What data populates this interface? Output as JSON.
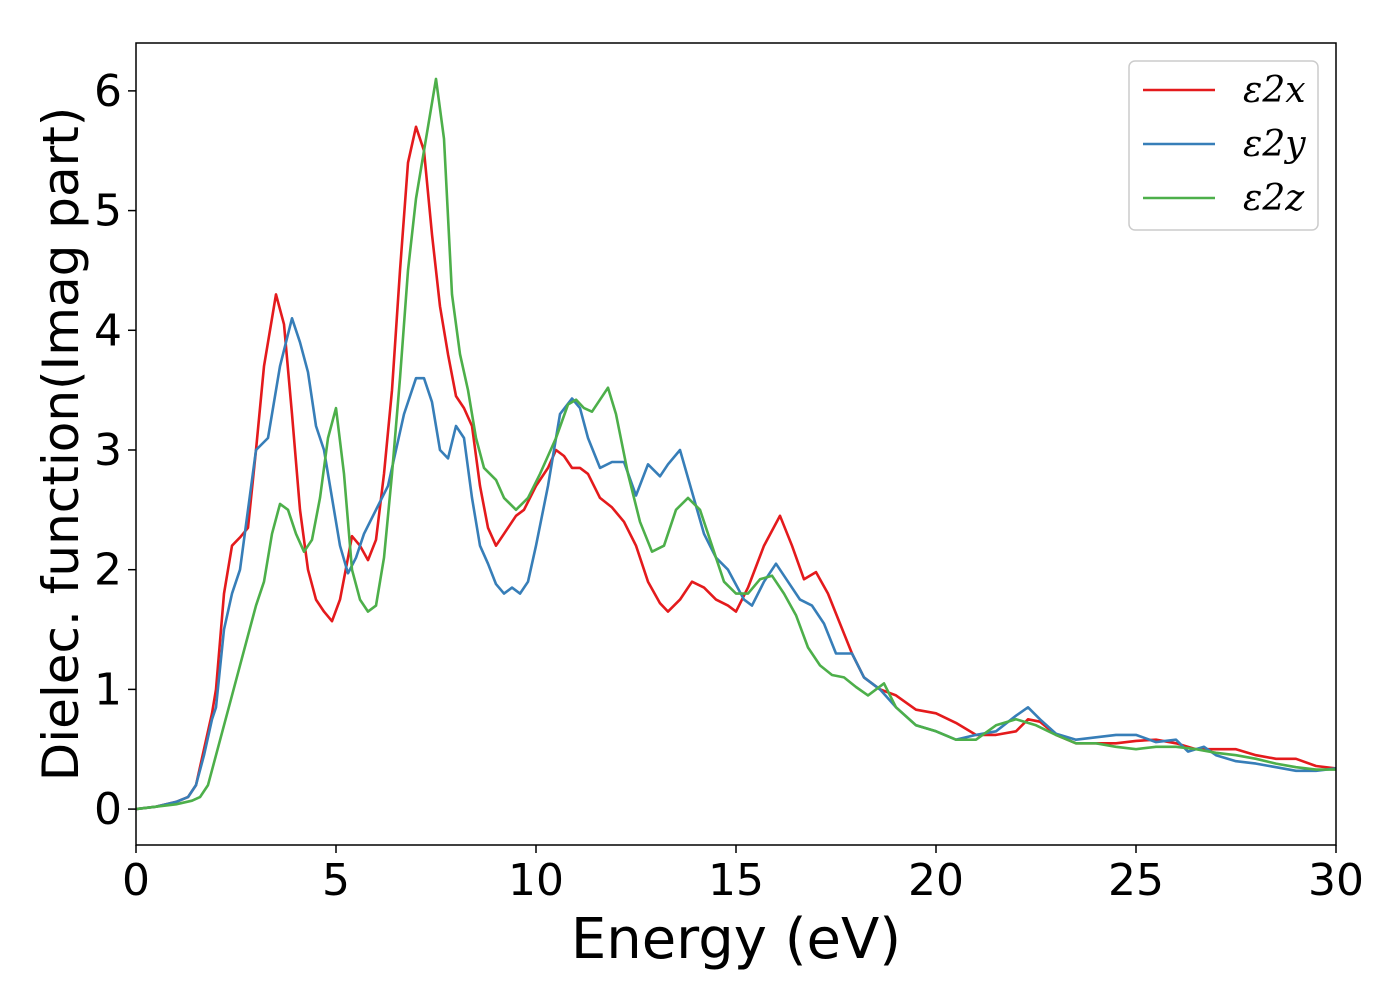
{
  "chart_data": {
    "type": "line",
    "xlabel": "Energy (eV)",
    "ylabel": "Dielec. function(Imag part)",
    "xlim": [
      0,
      30
    ],
    "ylim": [
      -0.3,
      6.4
    ],
    "xticks": [
      0,
      5,
      10,
      15,
      20,
      25,
      30
    ],
    "xtick_labels": [
      "0",
      "5",
      "10",
      "15",
      "20",
      "25",
      "30"
    ],
    "yticks": [
      0,
      1,
      2,
      3,
      4,
      5,
      6
    ],
    "ytick_labels": [
      "0",
      "1",
      "2",
      "3",
      "4",
      "5",
      "6"
    ],
    "grid": false,
    "legend_position": "top-right",
    "series": [
      {
        "name": "ε2x",
        "color": "#e41a1c",
        "points": [
          [
            0,
            0
          ],
          [
            0.5,
            0.02
          ],
          [
            1,
            0.06
          ],
          [
            1.3,
            0.1
          ],
          [
            1.5,
            0.2
          ],
          [
            1.7,
            0.5
          ],
          [
            1.9,
            0.8
          ],
          [
            2.0,
            1.0
          ],
          [
            2.2,
            1.8
          ],
          [
            2.4,
            2.2
          ],
          [
            2.6,
            2.27
          ],
          [
            2.8,
            2.35
          ],
          [
            3.0,
            3.0
          ],
          [
            3.2,
            3.7
          ],
          [
            3.5,
            4.3
          ],
          [
            3.7,
            4.05
          ],
          [
            3.9,
            3.3
          ],
          [
            4.1,
            2.5
          ],
          [
            4.3,
            2.0
          ],
          [
            4.5,
            1.75
          ],
          [
            4.7,
            1.65
          ],
          [
            4.9,
            1.57
          ],
          [
            5.1,
            1.75
          ],
          [
            5.3,
            2.1
          ],
          [
            5.4,
            2.28
          ],
          [
            5.6,
            2.2
          ],
          [
            5.8,
            2.08
          ],
          [
            6.0,
            2.25
          ],
          [
            6.2,
            2.8
          ],
          [
            6.4,
            3.5
          ],
          [
            6.6,
            4.5
          ],
          [
            6.8,
            5.4
          ],
          [
            7.0,
            5.7
          ],
          [
            7.2,
            5.5
          ],
          [
            7.4,
            4.8
          ],
          [
            7.6,
            4.2
          ],
          [
            7.8,
            3.8
          ],
          [
            8.0,
            3.45
          ],
          [
            8.2,
            3.35
          ],
          [
            8.4,
            3.2
          ],
          [
            8.6,
            2.7
          ],
          [
            8.8,
            2.35
          ],
          [
            9.0,
            2.2
          ],
          [
            9.2,
            2.3
          ],
          [
            9.5,
            2.45
          ],
          [
            9.7,
            2.5
          ],
          [
            10.0,
            2.7
          ],
          [
            10.3,
            2.85
          ],
          [
            10.5,
            3.0
          ],
          [
            10.7,
            2.95
          ],
          [
            10.9,
            2.85
          ],
          [
            11.1,
            2.85
          ],
          [
            11.3,
            2.8
          ],
          [
            11.6,
            2.6
          ],
          [
            11.9,
            2.52
          ],
          [
            12.2,
            2.4
          ],
          [
            12.5,
            2.2
          ],
          [
            12.8,
            1.9
          ],
          [
            13.1,
            1.72
          ],
          [
            13.3,
            1.65
          ],
          [
            13.6,
            1.75
          ],
          [
            13.9,
            1.9
          ],
          [
            14.2,
            1.85
          ],
          [
            14.5,
            1.75
          ],
          [
            14.8,
            1.7
          ],
          [
            15.0,
            1.65
          ],
          [
            15.3,
            1.85
          ],
          [
            15.7,
            2.2
          ],
          [
            16.1,
            2.45
          ],
          [
            16.4,
            2.2
          ],
          [
            16.7,
            1.92
          ],
          [
            17.0,
            1.98
          ],
          [
            17.3,
            1.8
          ],
          [
            17.6,
            1.55
          ],
          [
            17.9,
            1.3
          ],
          [
            18.2,
            1.1
          ],
          [
            18.6,
            1.0
          ],
          [
            19.0,
            0.95
          ],
          [
            19.5,
            0.83
          ],
          [
            20.0,
            0.8
          ],
          [
            20.5,
            0.72
          ],
          [
            21.0,
            0.62
          ],
          [
            21.5,
            0.62
          ],
          [
            22.0,
            0.65
          ],
          [
            22.3,
            0.75
          ],
          [
            22.6,
            0.73
          ],
          [
            23.0,
            0.62
          ],
          [
            23.5,
            0.55
          ],
          [
            24.0,
            0.55
          ],
          [
            24.5,
            0.55
          ],
          [
            25.0,
            0.57
          ],
          [
            25.5,
            0.58
          ],
          [
            26.0,
            0.55
          ],
          [
            26.5,
            0.5
          ],
          [
            27.0,
            0.5
          ],
          [
            27.5,
            0.5
          ],
          [
            28.0,
            0.45
          ],
          [
            28.5,
            0.42
          ],
          [
            29.0,
            0.42
          ],
          [
            29.5,
            0.36
          ],
          [
            30.0,
            0.34
          ]
        ]
      },
      {
        "name": "ε2y",
        "color": "#377eb8",
        "points": [
          [
            0,
            0
          ],
          [
            0.5,
            0.02
          ],
          [
            1,
            0.06
          ],
          [
            1.3,
            0.1
          ],
          [
            1.5,
            0.2
          ],
          [
            1.7,
            0.45
          ],
          [
            1.9,
            0.75
          ],
          [
            2.0,
            0.85
          ],
          [
            2.2,
            1.5
          ],
          [
            2.4,
            1.8
          ],
          [
            2.6,
            2.0
          ],
          [
            2.8,
            2.5
          ],
          [
            3.0,
            3.0
          ],
          [
            3.3,
            3.1
          ],
          [
            3.6,
            3.7
          ],
          [
            3.9,
            4.1
          ],
          [
            4.1,
            3.9
          ],
          [
            4.3,
            3.65
          ],
          [
            4.5,
            3.2
          ],
          [
            4.7,
            3.0
          ],
          [
            4.9,
            2.6
          ],
          [
            5.1,
            2.2
          ],
          [
            5.3,
            1.97
          ],
          [
            5.5,
            2.1
          ],
          [
            5.7,
            2.3
          ],
          [
            6.0,
            2.5
          ],
          [
            6.3,
            2.7
          ],
          [
            6.5,
            3.0
          ],
          [
            6.7,
            3.3
          ],
          [
            7.0,
            3.6
          ],
          [
            7.2,
            3.6
          ],
          [
            7.4,
            3.4
          ],
          [
            7.6,
            3.0
          ],
          [
            7.8,
            2.93
          ],
          [
            8.0,
            3.2
          ],
          [
            8.2,
            3.1
          ],
          [
            8.4,
            2.6
          ],
          [
            8.6,
            2.2
          ],
          [
            8.8,
            2.05
          ],
          [
            9.0,
            1.88
          ],
          [
            9.2,
            1.8
          ],
          [
            9.4,
            1.85
          ],
          [
            9.6,
            1.8
          ],
          [
            9.8,
            1.9
          ],
          [
            10.0,
            2.2
          ],
          [
            10.3,
            2.7
          ],
          [
            10.6,
            3.3
          ],
          [
            10.9,
            3.43
          ],
          [
            11.1,
            3.35
          ],
          [
            11.3,
            3.1
          ],
          [
            11.6,
            2.85
          ],
          [
            11.9,
            2.9
          ],
          [
            12.2,
            2.9
          ],
          [
            12.5,
            2.62
          ],
          [
            12.8,
            2.88
          ],
          [
            13.1,
            2.78
          ],
          [
            13.3,
            2.88
          ],
          [
            13.6,
            3.0
          ],
          [
            13.9,
            2.65
          ],
          [
            14.2,
            2.3
          ],
          [
            14.5,
            2.1
          ],
          [
            14.8,
            2.0
          ],
          [
            15.2,
            1.75
          ],
          [
            15.4,
            1.7
          ],
          [
            15.7,
            1.9
          ],
          [
            16.0,
            2.05
          ],
          [
            16.3,
            1.9
          ],
          [
            16.6,
            1.75
          ],
          [
            16.9,
            1.7
          ],
          [
            17.2,
            1.55
          ],
          [
            17.5,
            1.3
          ],
          [
            17.9,
            1.3
          ],
          [
            18.2,
            1.1
          ],
          [
            18.6,
            1.0
          ],
          [
            19.0,
            0.85
          ],
          [
            19.5,
            0.7
          ],
          [
            20.0,
            0.65
          ],
          [
            20.5,
            0.58
          ],
          [
            21.0,
            0.62
          ],
          [
            21.5,
            0.65
          ],
          [
            22.0,
            0.78
          ],
          [
            22.3,
            0.85
          ],
          [
            22.6,
            0.75
          ],
          [
            23.0,
            0.63
          ],
          [
            23.5,
            0.58
          ],
          [
            24.0,
            0.6
          ],
          [
            24.5,
            0.62
          ],
          [
            25.0,
            0.62
          ],
          [
            25.5,
            0.56
          ],
          [
            26.0,
            0.58
          ],
          [
            26.3,
            0.48
          ],
          [
            26.7,
            0.52
          ],
          [
            27.0,
            0.45
          ],
          [
            27.5,
            0.4
          ],
          [
            28.0,
            0.38
          ],
          [
            28.5,
            0.35
          ],
          [
            29.0,
            0.32
          ],
          [
            29.5,
            0.32
          ],
          [
            30.0,
            0.34
          ]
        ]
      },
      {
        "name": "ε2z",
        "color": "#4daf4a",
        "points": [
          [
            0,
            0
          ],
          [
            0.5,
            0.02
          ],
          [
            1,
            0.04
          ],
          [
            1.4,
            0.07
          ],
          [
            1.6,
            0.1
          ],
          [
            1.8,
            0.2
          ],
          [
            2.0,
            0.45
          ],
          [
            2.2,
            0.7
          ],
          [
            2.4,
            0.95
          ],
          [
            2.6,
            1.2
          ],
          [
            2.8,
            1.45
          ],
          [
            3.0,
            1.7
          ],
          [
            3.2,
            1.9
          ],
          [
            3.4,
            2.3
          ],
          [
            3.6,
            2.55
          ],
          [
            3.8,
            2.5
          ],
          [
            4.0,
            2.3
          ],
          [
            4.2,
            2.15
          ],
          [
            4.4,
            2.25
          ],
          [
            4.6,
            2.6
          ],
          [
            4.8,
            3.1
          ],
          [
            5.0,
            3.35
          ],
          [
            5.2,
            2.8
          ],
          [
            5.4,
            2.0
          ],
          [
            5.6,
            1.75
          ],
          [
            5.8,
            1.65
          ],
          [
            6.0,
            1.7
          ],
          [
            6.2,
            2.1
          ],
          [
            6.4,
            2.8
          ],
          [
            6.6,
            3.6
          ],
          [
            6.8,
            4.5
          ],
          [
            7.0,
            5.1
          ],
          [
            7.2,
            5.5
          ],
          [
            7.4,
            5.9
          ],
          [
            7.5,
            6.1
          ],
          [
            7.7,
            5.6
          ],
          [
            7.9,
            4.3
          ],
          [
            8.1,
            3.8
          ],
          [
            8.3,
            3.5
          ],
          [
            8.5,
            3.1
          ],
          [
            8.7,
            2.85
          ],
          [
            9.0,
            2.75
          ],
          [
            9.2,
            2.6
          ],
          [
            9.5,
            2.5
          ],
          [
            9.8,
            2.6
          ],
          [
            10.1,
            2.8
          ],
          [
            10.5,
            3.1
          ],
          [
            10.8,
            3.38
          ],
          [
            11.0,
            3.42
          ],
          [
            11.2,
            3.35
          ],
          [
            11.4,
            3.32
          ],
          [
            11.6,
            3.42
          ],
          [
            11.8,
            3.52
          ],
          [
            12.0,
            3.3
          ],
          [
            12.3,
            2.8
          ],
          [
            12.6,
            2.4
          ],
          [
            12.9,
            2.15
          ],
          [
            13.2,
            2.2
          ],
          [
            13.5,
            2.5
          ],
          [
            13.8,
            2.6
          ],
          [
            14.1,
            2.5
          ],
          [
            14.4,
            2.2
          ],
          [
            14.7,
            1.9
          ],
          [
            15.0,
            1.8
          ],
          [
            15.3,
            1.8
          ],
          [
            15.6,
            1.92
          ],
          [
            15.9,
            1.95
          ],
          [
            16.2,
            1.8
          ],
          [
            16.5,
            1.62
          ],
          [
            16.8,
            1.35
          ],
          [
            17.1,
            1.2
          ],
          [
            17.4,
            1.12
          ],
          [
            17.7,
            1.1
          ],
          [
            18.0,
            1.02
          ],
          [
            18.3,
            0.95
          ],
          [
            18.7,
            1.05
          ],
          [
            19.0,
            0.85
          ],
          [
            19.5,
            0.7
          ],
          [
            20.0,
            0.65
          ],
          [
            20.5,
            0.58
          ],
          [
            21.0,
            0.58
          ],
          [
            21.5,
            0.7
          ],
          [
            22.0,
            0.75
          ],
          [
            22.5,
            0.7
          ],
          [
            23.0,
            0.62
          ],
          [
            23.5,
            0.55
          ],
          [
            24.0,
            0.55
          ],
          [
            24.5,
            0.52
          ],
          [
            25.0,
            0.5
          ],
          [
            25.5,
            0.52
          ],
          [
            26.0,
            0.52
          ],
          [
            26.5,
            0.5
          ],
          [
            27.0,
            0.47
          ],
          [
            27.5,
            0.45
          ],
          [
            28.0,
            0.42
          ],
          [
            28.5,
            0.38
          ],
          [
            29.0,
            0.35
          ],
          [
            29.5,
            0.33
          ],
          [
            30.0,
            0.33
          ]
        ]
      }
    ]
  }
}
